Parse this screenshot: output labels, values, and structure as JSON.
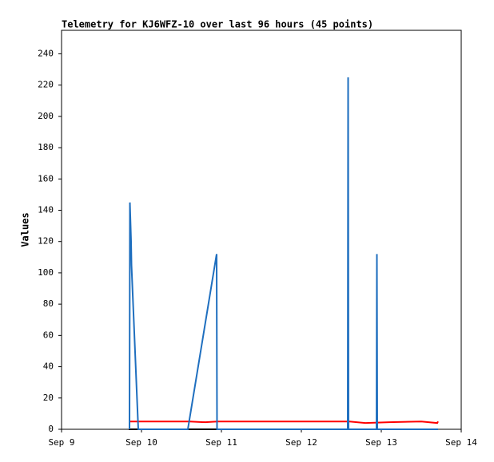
{
  "chart_data": {
    "type": "line",
    "title": "Telemetry for KJ6WFZ-10 over last 96 hours (45 points)",
    "y_label": "Values",
    "xlim": [
      0,
      5
    ],
    "xticks": [
      {
        "value": 0,
        "label": "Sep 9"
      },
      {
        "value": 1,
        "label": "Sep 10"
      },
      {
        "value": 2,
        "label": "Sep 11"
      },
      {
        "value": 3,
        "label": "Sep 12"
      },
      {
        "value": 4,
        "label": "Sep 13"
      },
      {
        "value": 5,
        "label": "Sep 14"
      }
    ],
    "ylim": [
      0,
      255
    ],
    "yticks": [
      0,
      20,
      40,
      60,
      80,
      100,
      120,
      140,
      160,
      180,
      200,
      220,
      240
    ],
    "grid": false,
    "series": [
      {
        "color": "#000000",
        "x": [
          0.84,
          4.71
        ],
        "values": [
          0,
          0
        ]
      },
      {
        "color": "#ff0000",
        "x": [
          0.84,
          1.6,
          1.8,
          1.95,
          3.6,
          3.8,
          4.1,
          4.5,
          4.7,
          4.71
        ],
        "values": [
          5,
          5,
          4.5,
          5,
          5,
          4,
          4.5,
          5,
          4,
          5
        ]
      },
      {
        "color": "#1f6fbf",
        "x": [
          0.85,
          0.855,
          0.87,
          0.875,
          0.96,
          1.58,
          1.94,
          1.945,
          3.58,
          3.585,
          3.59,
          3.94,
          3.945,
          3.95,
          4.71
        ],
        "values": [
          0,
          145,
          120,
          105,
          0,
          0,
          112,
          0,
          0,
          225,
          0,
          0,
          112,
          0,
          0
        ]
      }
    ]
  }
}
